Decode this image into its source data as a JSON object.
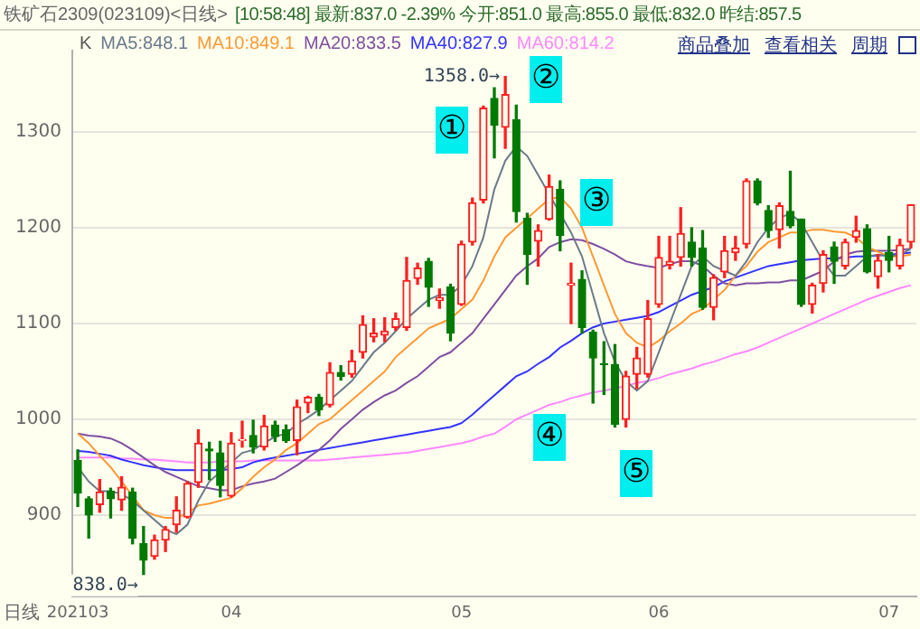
{
  "chart_data": {
    "type": "candlestick",
    "title": "铁矿石2309(023109)<日线>",
    "subtitle": "[10:58:48] 最新:837.0 -2.39% 今开:851.0 最高:855.0 最低:832.0 昨结:857.5",
    "xlabel": "日线",
    "legend_title": "K",
    "legend": "top left",
    "grid": "y",
    "ylim": [
      815,
      1385
    ],
    "yticks": [
      900,
      1000,
      1100,
      1200,
      1300
    ],
    "categories": [
      "202103",
      null,
      null,
      null,
      null,
      null,
      null,
      null,
      null,
      null,
      null,
      null,
      null,
      null,
      "04",
      null,
      null,
      null,
      null,
      null,
      null,
      null,
      null,
      null,
      null,
      null,
      null,
      null,
      null,
      null,
      null,
      null,
      null,
      null,
      null,
      "05",
      null,
      null,
      null,
      null,
      null,
      null,
      null,
      null,
      null,
      null,
      null,
      null,
      null,
      null,
      null,
      null,
      null,
      "06",
      null,
      null,
      null,
      null,
      null,
      null,
      null,
      null,
      null,
      null,
      null,
      null,
      null,
      null,
      null,
      null,
      null,
      null,
      null,
      null,
      "07",
      null,
      null
    ],
    "ohlc": [
      [
        957,
        968,
        909,
        923
      ],
      [
        917,
        919,
        876,
        900
      ],
      [
        911,
        937,
        903,
        924
      ],
      [
        925,
        928,
        897,
        917
      ],
      [
        916,
        940,
        905,
        929
      ],
      [
        924,
        928,
        870,
        876
      ],
      [
        870,
        888,
        838,
        853
      ],
      [
        857,
        879,
        854,
        874
      ],
      [
        874,
        888,
        862,
        885
      ],
      [
        890,
        919,
        882,
        905
      ],
      [
        898,
        935,
        897,
        933
      ],
      [
        934,
        989,
        929,
        975
      ],
      [
        969,
        976,
        937,
        967
      ],
      [
        965,
        977,
        919,
        931
      ],
      [
        920,
        986,
        919,
        975
      ],
      [
        978,
        998,
        971,
        979
      ],
      [
        983,
        999,
        965,
        971
      ],
      [
        971,
        1004,
        968,
        993
      ],
      [
        994,
        998,
        977,
        982
      ],
      [
        989,
        994,
        976,
        978
      ],
      [
        978,
        1020,
        963,
        1013
      ],
      [
        1017,
        1024,
        1007,
        1023
      ],
      [
        1023,
        1026,
        1004,
        1010
      ],
      [
        1015,
        1059,
        1013,
        1049
      ],
      [
        1049,
        1056,
        1041,
        1045
      ],
      [
        1047,
        1072,
        1044,
        1061
      ],
      [
        1070,
        1108,
        1064,
        1099
      ],
      [
        1086,
        1105,
        1081,
        1090
      ],
      [
        1088,
        1106,
        1081,
        1092
      ],
      [
        1096,
        1111,
        1093,
        1105
      ],
      [
        1096,
        1169,
        1093,
        1145
      ],
      [
        1147,
        1163,
        1141,
        1158
      ],
      [
        1165,
        1168,
        1118,
        1138
      ],
      [
        1124,
        1136,
        1116,
        1127
      ],
      [
        1138,
        1141,
        1082,
        1090
      ],
      [
        1120,
        1186,
        1119,
        1183
      ],
      [
        1185,
        1231,
        1182,
        1226
      ],
      [
        1229,
        1327,
        1226,
        1325
      ],
      [
        1335,
        1347,
        1273,
        1307
      ],
      [
        1305,
        1358,
        1283,
        1339
      ],
      [
        1313,
        1328,
        1206,
        1217
      ],
      [
        1210,
        1215,
        1141,
        1172
      ],
      [
        1186,
        1203,
        1160,
        1197
      ],
      [
        1209,
        1255,
        1208,
        1243
      ],
      [
        1240,
        1249,
        1176,
        1192
      ],
      [
        1140,
        1163,
        1100,
        1142
      ],
      [
        1146,
        1155,
        1090,
        1096
      ],
      [
        1091,
        1093,
        1017,
        1064
      ],
      [
        1058,
        1081,
        1026,
        1057
      ],
      [
        1057,
        1078,
        992,
        995
      ],
      [
        1000,
        1050,
        992,
        1045
      ],
      [
        1047,
        1075,
        1032,
        1064
      ],
      [
        1047,
        1124,
        1044,
        1105
      ],
      [
        1120,
        1191,
        1117,
        1169
      ],
      [
        1161,
        1191,
        1157,
        1165
      ],
      [
        1169,
        1221,
        1160,
        1194
      ],
      [
        1185,
        1200,
        1160,
        1169
      ],
      [
        1179,
        1197,
        1115,
        1117
      ],
      [
        1117,
        1151,
        1104,
        1148
      ],
      [
        1154,
        1191,
        1148,
        1176
      ],
      [
        1174,
        1191,
        1166,
        1179
      ],
      [
        1183,
        1251,
        1179,
        1249
      ],
      [
        1249,
        1251,
        1224,
        1226
      ],
      [
        1218,
        1223,
        1190,
        1197
      ],
      [
        1198,
        1226,
        1179,
        1223
      ],
      [
        1217,
        1259,
        1200,
        1202
      ],
      [
        1209,
        1209,
        1118,
        1120
      ],
      [
        1120,
        1142,
        1111,
        1140
      ],
      [
        1142,
        1176,
        1133,
        1172
      ],
      [
        1180,
        1185,
        1142,
        1165
      ],
      [
        1160,
        1188,
        1157,
        1185
      ],
      [
        1190,
        1212,
        1185,
        1197
      ],
      [
        1199,
        1203,
        1153,
        1154
      ],
      [
        1149,
        1172,
        1137,
        1166
      ],
      [
        1174,
        1191,
        1154,
        1166
      ],
      [
        1160,
        1188,
        1157,
        1182
      ],
      [
        1185,
        1224,
        1179,
        1224
      ]
    ],
    "series": [
      {
        "name": "MA5:848.1",
        "type": "line",
        "color": "#6a7a8a",
        "values": [
          950,
          935,
          925,
          925,
          922,
          915,
          905,
          895,
          885,
          880,
          890,
          915,
          935,
          945,
          955,
          965,
          968,
          975,
          982,
          985,
          995,
          1002,
          1010,
          1020,
          1030,
          1040,
          1055,
          1070,
          1080,
          1092,
          1105,
          1115,
          1125,
          1130,
          1130,
          1140,
          1160,
          1190,
          1240,
          1270,
          1285,
          1275,
          1255,
          1235,
          1215,
          1195,
          1170,
          1130,
          1090,
          1060,
          1040,
          1030,
          1040,
          1070,
          1100,
          1130,
          1160,
          1170,
          1160,
          1155,
          1150,
          1165,
          1185,
          1200,
          1210,
          1215,
          1205,
          1185,
          1165,
          1150,
          1150,
          1160,
          1170,
          1172,
          1170,
          1172,
          1178
        ]
      },
      {
        "name": "MA10:849.1",
        "type": "line",
        "color": "#ff9933",
        "values": [
          985,
          975,
          962,
          950,
          935,
          920,
          905,
          900,
          897,
          897,
          902,
          910,
          912,
          915,
          918,
          928,
          940,
          950,
          958,
          968,
          975,
          985,
          995,
          1000,
          1010,
          1020,
          1030,
          1040,
          1050,
          1065,
          1075,
          1085,
          1095,
          1100,
          1105,
          1115,
          1125,
          1145,
          1170,
          1190,
          1200,
          1210,
          1220,
          1230,
          1232,
          1220,
          1200,
          1170,
          1140,
          1110,
          1090,
          1080,
          1075,
          1082,
          1092,
          1100,
          1110,
          1115,
          1125,
          1135,
          1150,
          1160,
          1175,
          1185,
          1190,
          1195,
          1195,
          1198,
          1198,
          1196,
          1195,
          1190,
          1180,
          1175,
          1170,
          1170,
          1172
        ]
      },
      {
        "name": "MA20:833.5",
        "type": "line",
        "color": "#7f4fa0",
        "values": [
          985,
          983,
          982,
          980,
          975,
          968,
          960,
          952,
          945,
          940,
          935,
          930,
          928,
          926,
          926,
          930,
          933,
          935,
          938,
          945,
          952,
          960,
          968,
          978,
          990,
          1000,
          1010,
          1018,
          1025,
          1030,
          1038,
          1045,
          1055,
          1065,
          1070,
          1080,
          1090,
          1105,
          1120,
          1135,
          1150,
          1160,
          1168,
          1180,
          1185,
          1188,
          1187,
          1183,
          1178,
          1172,
          1165,
          1162,
          1160,
          1158,
          1162,
          1165,
          1165,
          1160,
          1150,
          1142,
          1140,
          1142,
          1142,
          1143,
          1143,
          1145,
          1145,
          1150,
          1155,
          1165,
          1172,
          1175,
          1176,
          1176,
          1176,
          1177,
          1178
        ]
      },
      {
        "name": "MA40:827.9",
        "type": "line",
        "color": "#3333ff",
        "values": [
          967,
          966,
          964,
          962,
          958,
          955,
          952,
          950,
          948,
          947,
          947,
          947,
          947,
          947,
          948,
          950,
          955,
          958,
          960,
          962,
          964,
          966,
          968,
          970,
          972,
          974,
          976,
          978,
          980,
          982,
          984,
          986,
          988,
          990,
          992,
          996,
          1005,
          1015,
          1025,
          1035,
          1045,
          1050,
          1058,
          1065,
          1075,
          1082,
          1090,
          1096,
          1100,
          1102,
          1104,
          1106,
          1108,
          1112,
          1118,
          1124,
          1130,
          1134,
          1138,
          1144,
          1148,
          1152,
          1156,
          1160,
          1162,
          1164,
          1166,
          1167,
          1168,
          1168,
          1169,
          1170,
          1170,
          1171,
          1172,
          1173,
          1174
        ]
      },
      {
        "name": "MA60:814.2",
        "type": "line",
        "color": "#ff88ff",
        "values": [
          960,
          960,
          960,
          960,
          959,
          959,
          958,
          958,
          957,
          956,
          955,
          955,
          955,
          956,
          956,
          956,
          957,
          957,
          957,
          957,
          957,
          957,
          957,
          958,
          959,
          960,
          961,
          962,
          963,
          964,
          965,
          967,
          969,
          971,
          973,
          975,
          978,
          982,
          985,
          992,
          1000,
          1005,
          1010,
          1015,
          1018,
          1022,
          1025,
          1028,
          1030,
          1032,
          1035,
          1038,
          1040,
          1043,
          1047,
          1050,
          1053,
          1057,
          1060,
          1064,
          1068,
          1071,
          1075,
          1080,
          1085,
          1090,
          1095,
          1100,
          1105,
          1110,
          1115,
          1120,
          1125,
          1129,
          1133,
          1137,
          1140
        ]
      }
    ],
    "annotations": [
      "①",
      "②",
      "③",
      "④",
      "⑤",
      "1358.0→",
      "838.0→",
      "商品叠加",
      "查看相关",
      "周期"
    ]
  }
}
